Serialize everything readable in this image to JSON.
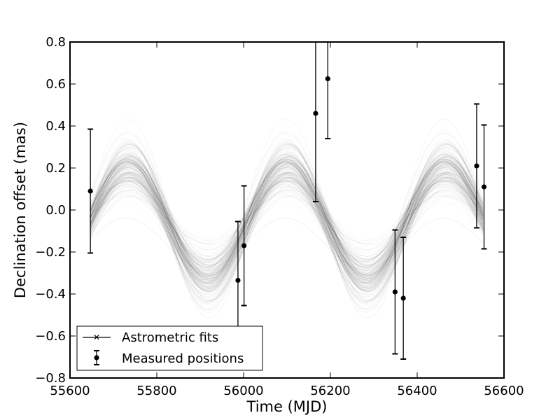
{
  "chart_data": {
    "type": "scatter",
    "title": "",
    "xlabel": "Time (MJD)",
    "ylabel": "Declination offset (mas)",
    "xlim": [
      55600,
      56600
    ],
    "ylim": [
      -0.8,
      0.8
    ],
    "xticks": [
      55600,
      55800,
      56000,
      56200,
      56400,
      56600
    ],
    "yticks": [
      -0.8,
      -0.6,
      -0.4,
      -0.2,
      0.0,
      0.2,
      0.4,
      0.6,
      0.8
    ],
    "xtick_labels": [
      "55600",
      "55800",
      "56000",
      "56200",
      "56400",
      "56600"
    ],
    "ytick_labels": [
      "−0.8",
      "−0.6",
      "−0.4",
      "−0.2",
      "0.0",
      "0.2",
      "0.4",
      "0.6",
      "0.8"
    ],
    "grid": false,
    "legend": {
      "placement": "lower-left",
      "entries": [
        {
          "label": "Astrometric fits",
          "marker": "x-line"
        },
        {
          "label": "Measured positions",
          "marker": "dot-errorbar"
        }
      ]
    },
    "series": [
      {
        "name": "Measured positions",
        "kind": "errorbar",
        "points": [
          {
            "x": 55647,
            "y": 0.09,
            "yerr": 0.295
          },
          {
            "x": 55987,
            "y": -0.335,
            "yerr": 0.28
          },
          {
            "x": 56001,
            "y": -0.17,
            "yerr": 0.285
          },
          {
            "x": 56166,
            "y": 0.46,
            "yerr": 0.42
          },
          {
            "x": 56194,
            "y": 0.625,
            "yerr": 0.285
          },
          {
            "x": 56349,
            "y": -0.39,
            "yerr": 0.295
          },
          {
            "x": 56368,
            "y": -0.42,
            "yerr": 0.29
          },
          {
            "x": 56537,
            "y": 0.21,
            "yerr": 0.295
          },
          {
            "x": 56554,
            "y": 0.11,
            "yerr": 0.295
          }
        ]
      },
      {
        "name": "Astrometric fits",
        "kind": "sinusoid-ensemble",
        "color": "#000000",
        "period_days": 365.25,
        "phase_peak_mjd": 55735,
        "amplitude_mean": 0.26,
        "amplitude_spread": 0.12,
        "offset_mean": -0.06,
        "offset_spread": 0.08,
        "n_curves": 140,
        "x_range": [
          55647,
          56554
        ]
      }
    ]
  }
}
